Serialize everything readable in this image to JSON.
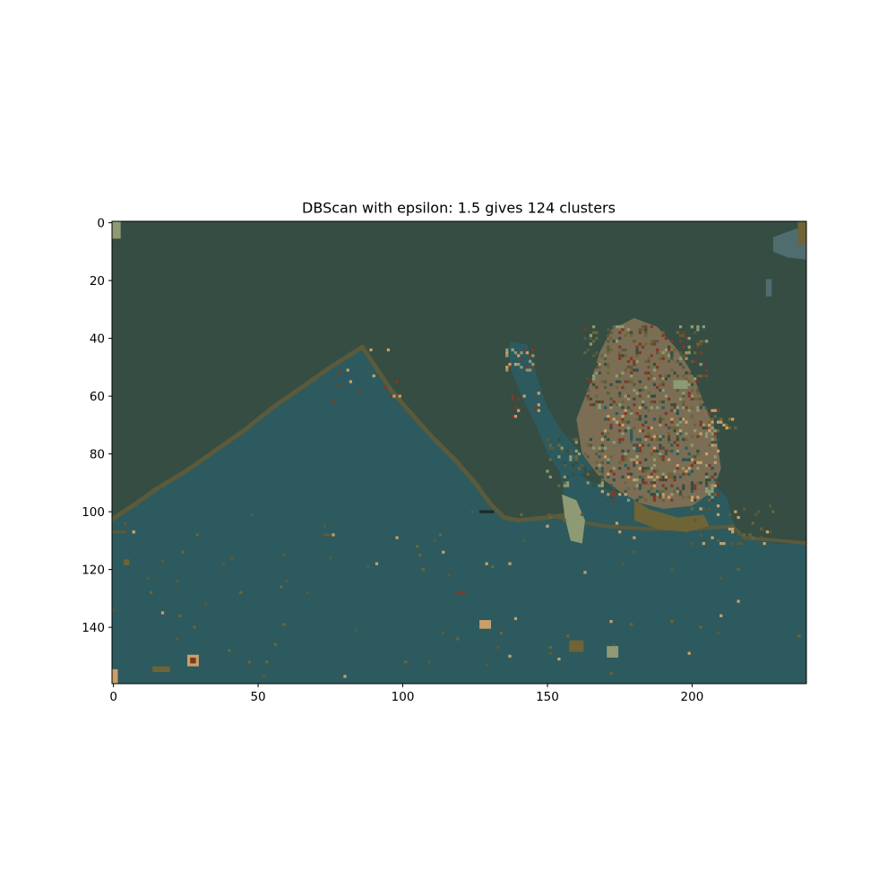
{
  "chart_data": {
    "type": "heatmap",
    "title": "DBScan with epsilon: 1.5 gives 124 clusters",
    "xlabel": "",
    "ylabel": "",
    "xlim": [
      0,
      240
    ],
    "ylim": [
      160,
      0
    ],
    "x_ticks": [
      0,
      50,
      100,
      150,
      200
    ],
    "y_ticks": [
      0,
      20,
      40,
      60,
      80,
      100,
      120,
      140
    ],
    "grid": false,
    "image_size": {
      "width": 240,
      "height": 160
    },
    "n_clusters": 124,
    "palette": {
      "land": "#354d42",
      "water": "#2c5a5e",
      "shore": "#5a5a3c",
      "olive": "#6e6436",
      "sand": "#c9a06a",
      "mauve": "#7b6e55",
      "sage": "#8e9a74",
      "rust": "#7e3a26",
      "steel": "#4f6d6f",
      "dark": "#1f2a22"
    }
  }
}
